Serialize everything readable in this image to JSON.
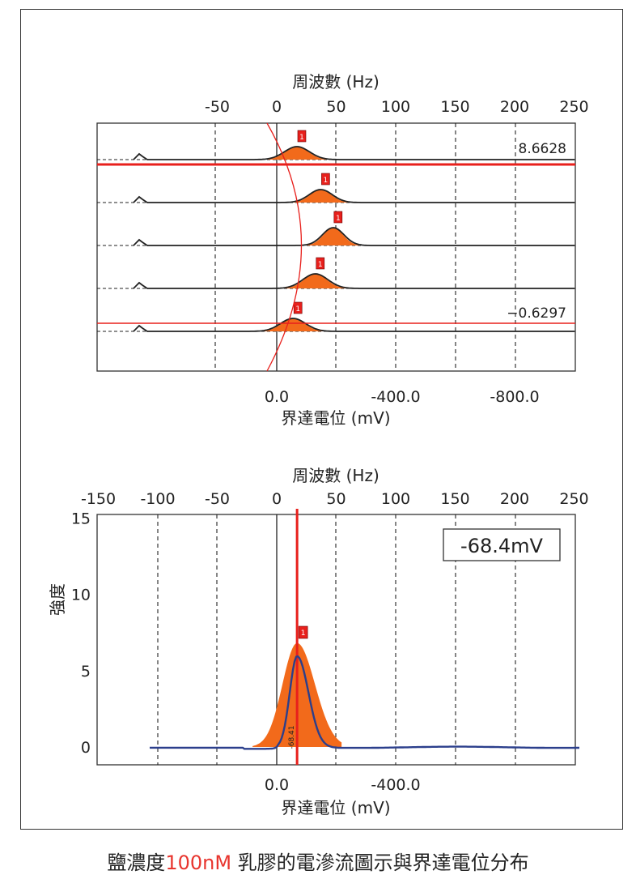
{
  "caption": {
    "prefix": "鹽濃度",
    "highlight": "100nM",
    "suffix": " 乳膠的電滲流圖示與界達電位分布"
  },
  "colors": {
    "red": "#e8201c",
    "orange": "#f26a1b",
    "blue": "#2b3f8c",
    "black": "#222222"
  },
  "chart_data": [
    {
      "type": "line",
      "name": "electroosmotic-flow-profiles",
      "x_label": "界達電位 (mV)",
      "x_ticks": [
        "0.0",
        "-400.0",
        "-800.0"
      ],
      "x_tick_values": [
        0,
        -400,
        -800
      ],
      "x_range": [
        100,
        -1000
      ],
      "top_axis_label": "周波數 (Hz)",
      "top_axis_ticks": [
        "-50",
        "0",
        "50",
        "100",
        "150",
        "200",
        "250"
      ],
      "top_axis_values": [
        -50,
        0,
        50,
        100,
        150,
        200,
        250
      ],
      "grid": "vertical-dashed",
      "upper_label": "8.6628",
      "lower_label": "−0.6297",
      "peak_marker": "1",
      "peaks_mv": [
        -68,
        -148,
        -190,
        -130,
        -55
      ]
    },
    {
      "type": "line",
      "name": "zeta-potential-distribution",
      "x_label": "界達電位 (mV)",
      "y_label": "強度",
      "x_ticks": [
        "0.0",
        "-400.0"
      ],
      "x_tick_values": [
        0,
        -400
      ],
      "top_axis_label": "周波數 (Hz)",
      "top_axis_ticks": [
        "-150",
        "-100",
        "-50",
        "0",
        "50",
        "100",
        "150",
        "200",
        "250"
      ],
      "top_axis_values": [
        -150,
        -100,
        -50,
        0,
        50,
        100,
        150,
        200,
        250
      ],
      "y_ticks": [
        "0",
        "5",
        "10",
        "15"
      ],
      "y_tick_values": [
        0,
        5,
        10,
        15
      ],
      "y_range": [
        -0.5,
        15
      ],
      "peak_mv": -68.41,
      "peak_intensity": 6.0,
      "peak_label": "-68.41",
      "peak_marker": "1",
      "result_box": "-68.4mV",
      "grid": "vertical-dashed"
    }
  ]
}
